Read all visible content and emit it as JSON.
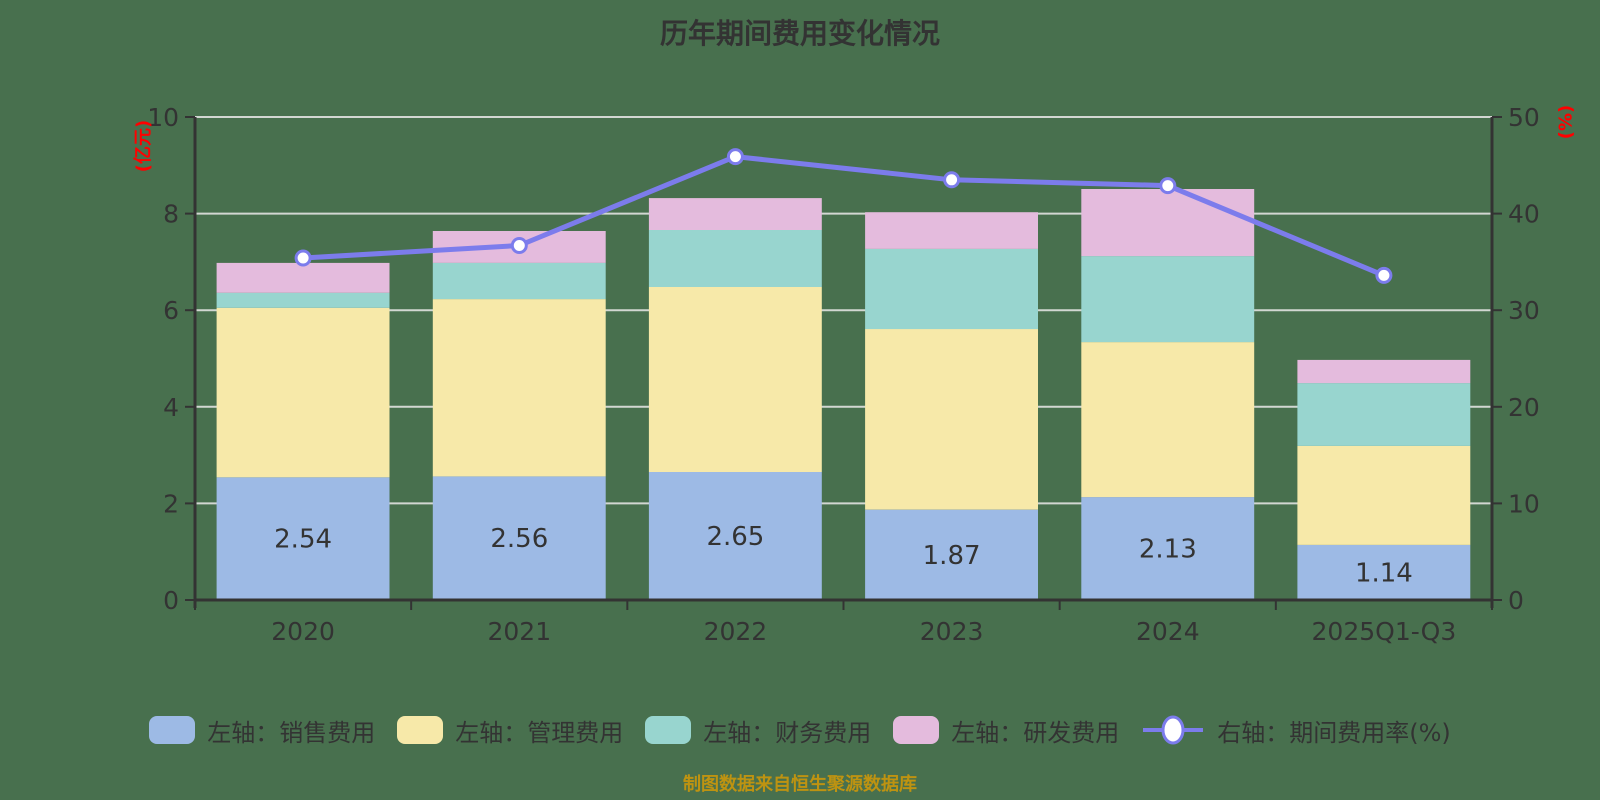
{
  "title": "历年期间费用变化情况",
  "footer": {
    "source_note": "制图数据来自恒生聚源数据库"
  },
  "palette": {
    "background": "#48704E",
    "grid_line": "#D2D7D2",
    "axis_line": "#333333",
    "text": "#333333",
    "title_color": "#333333",
    "unit_label_color": "#FF0000",
    "footer_color": "#BE9311",
    "marker_fill": "#FFFFFF"
  },
  "chart_data": {
    "type": "bar",
    "subtype": "stacked-bar-with-line",
    "title": "历年期间费用变化情况",
    "categories": [
      "2020",
      "2021",
      "2022",
      "2023",
      "2024",
      "2025Q1-Q3"
    ],
    "series": [
      {
        "name": "左轴：销售费用",
        "type": "bar",
        "axis": "left",
        "color": "#9DBAE5",
        "values": [
          2.54,
          2.56,
          2.65,
          1.87,
          2.13,
          1.14
        ],
        "show_labels": true,
        "labels": [
          "2.54",
          "2.56",
          "2.65",
          "1.87",
          "2.13",
          "1.14"
        ]
      },
      {
        "name": "左轴：管理费用",
        "type": "bar",
        "axis": "left",
        "color": "#F7E9A9",
        "values": [
          3.51,
          3.67,
          3.83,
          3.74,
          3.21,
          2.05
        ],
        "show_labels": false
      },
      {
        "name": "左轴：财务费用",
        "type": "bar",
        "axis": "left",
        "color": "#98D5CF",
        "values": [
          0.31,
          0.75,
          1.18,
          1.66,
          1.78,
          1.3
        ],
        "show_labels": false
      },
      {
        "name": "左轴：研发费用",
        "type": "bar",
        "axis": "left",
        "color": "#E4BBDD",
        "values": [
          0.62,
          0.66,
          0.66,
          0.76,
          1.39,
          0.48
        ],
        "show_labels": false
      },
      {
        "name": "右轴：期间费用率(%)",
        "type": "line",
        "axis": "right",
        "color": "#7C7CEC",
        "values": [
          35.4,
          36.7,
          45.9,
          43.5,
          42.9,
          33.6
        ],
        "show_labels": false
      }
    ],
    "left_axis": {
      "unit": "(亿元)",
      "min": 0,
      "max": 10,
      "ticks": [
        0,
        2,
        4,
        6,
        8,
        10
      ]
    },
    "right_axis": {
      "unit": "(%)",
      "min": 0,
      "max": 50,
      "ticks": [
        0,
        10,
        20,
        30,
        40,
        50
      ]
    },
    "grid": true,
    "legend_position": "bottom"
  }
}
